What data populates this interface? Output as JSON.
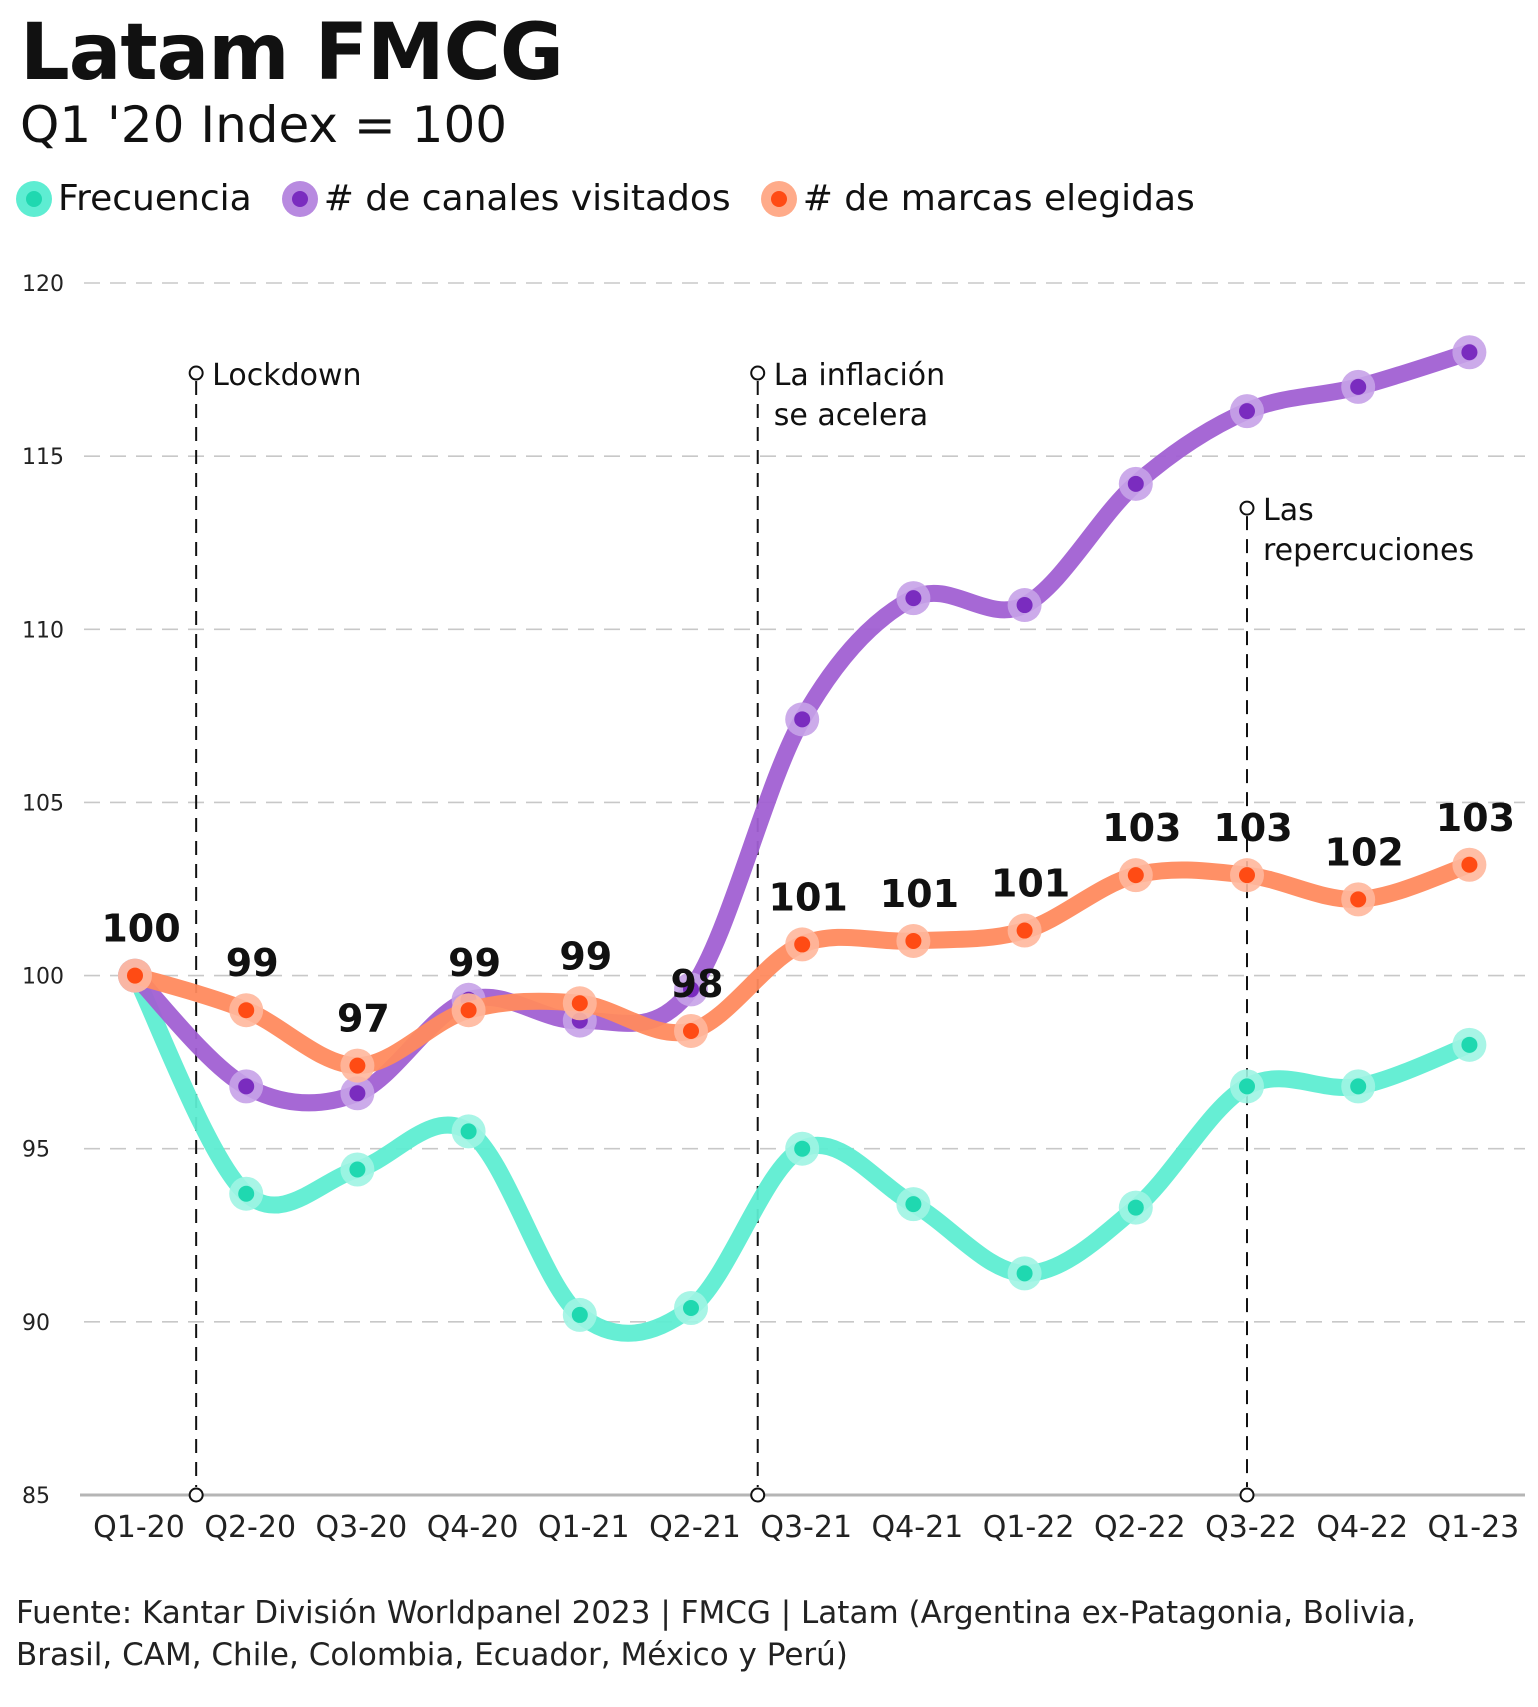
{
  "chart_data": {
    "type": "line",
    "title": "Latam FMCG",
    "subtitle": "Q1 '20 Index = 100",
    "categories": [
      "Q1-20",
      "Q2-20",
      "Q3-20",
      "Q4-20",
      "Q1-21",
      "Q2-21",
      "Q3-21",
      "Q4-21",
      "Q1-22",
      "Q2-22",
      "Q3-22",
      "Q4-22",
      "Q1-23"
    ],
    "ylim": [
      85,
      120
    ],
    "yticks": [
      85,
      90,
      95,
      100,
      105,
      110,
      115,
      120
    ],
    "grid": true,
    "legend_position": "top-left",
    "series": [
      {
        "name": "Frecuencia",
        "color": "#5eedd2",
        "dot_color": "#1fd8b0",
        "values": [
          100,
          93.7,
          94.4,
          95.5,
          90.2,
          90.4,
          95.0,
          93.4,
          91.4,
          93.3,
          96.8,
          96.8,
          98.0
        ]
      },
      {
        "name": "# de canales visitados",
        "color": "#a160d3",
        "dot_color": "#7a2cbf",
        "values": [
          100,
          96.8,
          96.6,
          99.3,
          98.7,
          99.6,
          107.4,
          110.9,
          110.7,
          114.2,
          116.3,
          117.0,
          118.0
        ]
      },
      {
        "name": "# de marcas elegidas",
        "color": "#ff8a5e",
        "dot_color": "#ff4b14",
        "values": [
          100,
          99.0,
          97.4,
          99.0,
          99.2,
          98.4,
          100.9,
          101.0,
          101.3,
          102.9,
          102.9,
          102.2,
          103.2
        ],
        "data_labels": [
          "100",
          "99",
          "97",
          "99",
          "99",
          "98",
          "101",
          "101",
          "101",
          "103",
          "103",
          "102",
          "103"
        ]
      }
    ],
    "annotations": [
      {
        "x_index": 0.55,
        "lines": [
          "Lockdown"
        ],
        "top_value": 117.4
      },
      {
        "x_index": 5.6,
        "lines": [
          "La inflación",
          "se acelera"
        ],
        "top_value": 117.4
      },
      {
        "x_index": 10.0,
        "lines": [
          "Las",
          "repercuciones"
        ],
        "top_value": 113.5
      }
    ]
  },
  "legend": {
    "items": [
      "Frecuencia",
      "# de canales visitados",
      "# de marcas elegidas"
    ]
  },
  "source": "Fuente: Kantar División Worldpanel 2023 | FMCG | Latam (Argentina ex-Patagonia, Bolivia, Brasil, CAM, Chile, Colombia, Ecuador, México y Perú)"
}
